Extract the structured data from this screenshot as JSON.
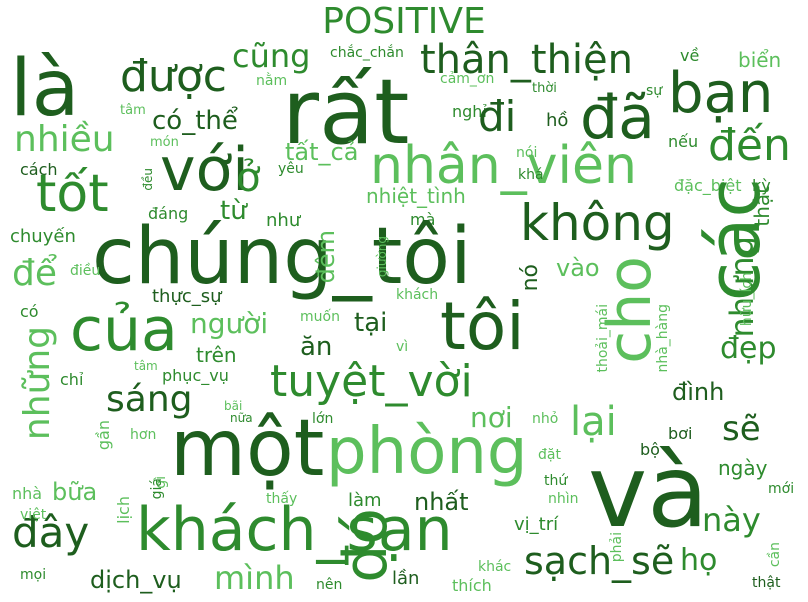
{
  "title": "POSITIVE",
  "colors": {
    "dark": "#1e5e1e",
    "mid": "#2e8b2e",
    "light": "#5cbf5c",
    "pale": "#8fd18f"
  },
  "words": [
    {
      "text": "là"
    },
    {
      "text": "được"
    },
    {
      "text": "rất"
    },
    {
      "text": "cũng"
    },
    {
      "text": "chắc_chắn"
    },
    {
      "text": "thân_thiện"
    },
    {
      "text": "về"
    },
    {
      "text": "biển"
    },
    {
      "text": "bạn"
    },
    {
      "text": "nằm"
    },
    {
      "text": "cảm_ơn"
    },
    {
      "text": "thời"
    },
    {
      "text": "sự"
    },
    {
      "text": "tâm"
    },
    {
      "text": "có_thể"
    },
    {
      "text": "nghỉ"
    },
    {
      "text": "hồ"
    },
    {
      "text": "đã"
    },
    {
      "text": "đi"
    },
    {
      "text": "nhiều"
    },
    {
      "text": "món"
    },
    {
      "text": "tất_cả"
    },
    {
      "text": "nhân_viên"
    },
    {
      "text": "nói"
    },
    {
      "text": "nếu"
    },
    {
      "text": "đến"
    },
    {
      "text": "với"
    },
    {
      "text": "cách"
    },
    {
      "text": "yêu"
    },
    {
      "text": "khá"
    },
    {
      "text": "tốt"
    },
    {
      "text": "ở"
    },
    {
      "text": "đều"
    },
    {
      "text": "nhiệt_tình"
    },
    {
      "text": "đặc_biệt"
    },
    {
      "text": "kỳ"
    },
    {
      "text": "đáng"
    },
    {
      "text": "từ"
    },
    {
      "text": "các"
    },
    {
      "text": "thật"
    },
    {
      "text": "chuyến"
    },
    {
      "text": "như"
    },
    {
      "text": "mà"
    },
    {
      "text": "không"
    },
    {
      "text": "chúng_tôi"
    },
    {
      "text": "đêm"
    },
    {
      "text": "giường"
    },
    {
      "text": "nhưng"
    },
    {
      "text": "để"
    },
    {
      "text": "điều"
    },
    {
      "text": "vào"
    },
    {
      "text": "nó"
    },
    {
      "text": "hữu_ích"
    },
    {
      "text": "thực_sự"
    },
    {
      "text": "khách"
    },
    {
      "text": "của"
    },
    {
      "text": "người"
    },
    {
      "text": "muốn"
    },
    {
      "text": "có"
    },
    {
      "text": "tại"
    },
    {
      "text": "tôi"
    },
    {
      "text": "cho"
    },
    {
      "text": "thoải_mái"
    },
    {
      "text": "nhà_hàng"
    },
    {
      "text": "những"
    },
    {
      "text": "ăn"
    },
    {
      "text": "vì"
    },
    {
      "text": "đẹp"
    },
    {
      "text": "trên"
    },
    {
      "text": "tâm"
    },
    {
      "text": "phục_vụ"
    },
    {
      "text": "chỉ"
    },
    {
      "text": "tuyệt_vời"
    },
    {
      "text": "đình"
    },
    {
      "text": "sáng"
    },
    {
      "text": "bãi"
    },
    {
      "text": "nữa"
    },
    {
      "text": "lớn"
    },
    {
      "text": "nơi"
    },
    {
      "text": "nhỏ"
    },
    {
      "text": "lại"
    },
    {
      "text": "sẽ"
    },
    {
      "text": "gần"
    },
    {
      "text": "hơn"
    },
    {
      "text": "một"
    },
    {
      "text": "phòng"
    },
    {
      "text": "bơi"
    },
    {
      "text": "đặt"
    },
    {
      "text": "bộ"
    },
    {
      "text": "ngày"
    },
    {
      "text": "nhà"
    },
    {
      "text": "bữa"
    },
    {
      "text": "gì"
    },
    {
      "text": "giá"
    },
    {
      "text": "thấy"
    },
    {
      "text": "làm"
    },
    {
      "text": "nhất"
    },
    {
      "text": "thứ"
    },
    {
      "text": "và"
    },
    {
      "text": "mới"
    },
    {
      "text": "nhìn"
    },
    {
      "text": "này"
    },
    {
      "text": "đây"
    },
    {
      "text": "việt"
    },
    {
      "text": "lịch"
    },
    {
      "text": "khách_sạn"
    },
    {
      "text": "đó"
    },
    {
      "text": "vị_trí"
    },
    {
      "text": "sạch_sẽ"
    },
    {
      "text": "phải"
    },
    {
      "text": "họ"
    },
    {
      "text": "cần"
    },
    {
      "text": "mọi"
    },
    {
      "text": "dịch_vụ"
    },
    {
      "text": "mình"
    },
    {
      "text": "nên"
    },
    {
      "text": "lần"
    },
    {
      "text": "thích"
    },
    {
      "text": "khác"
    },
    {
      "text": "thật"
    }
  ]
}
